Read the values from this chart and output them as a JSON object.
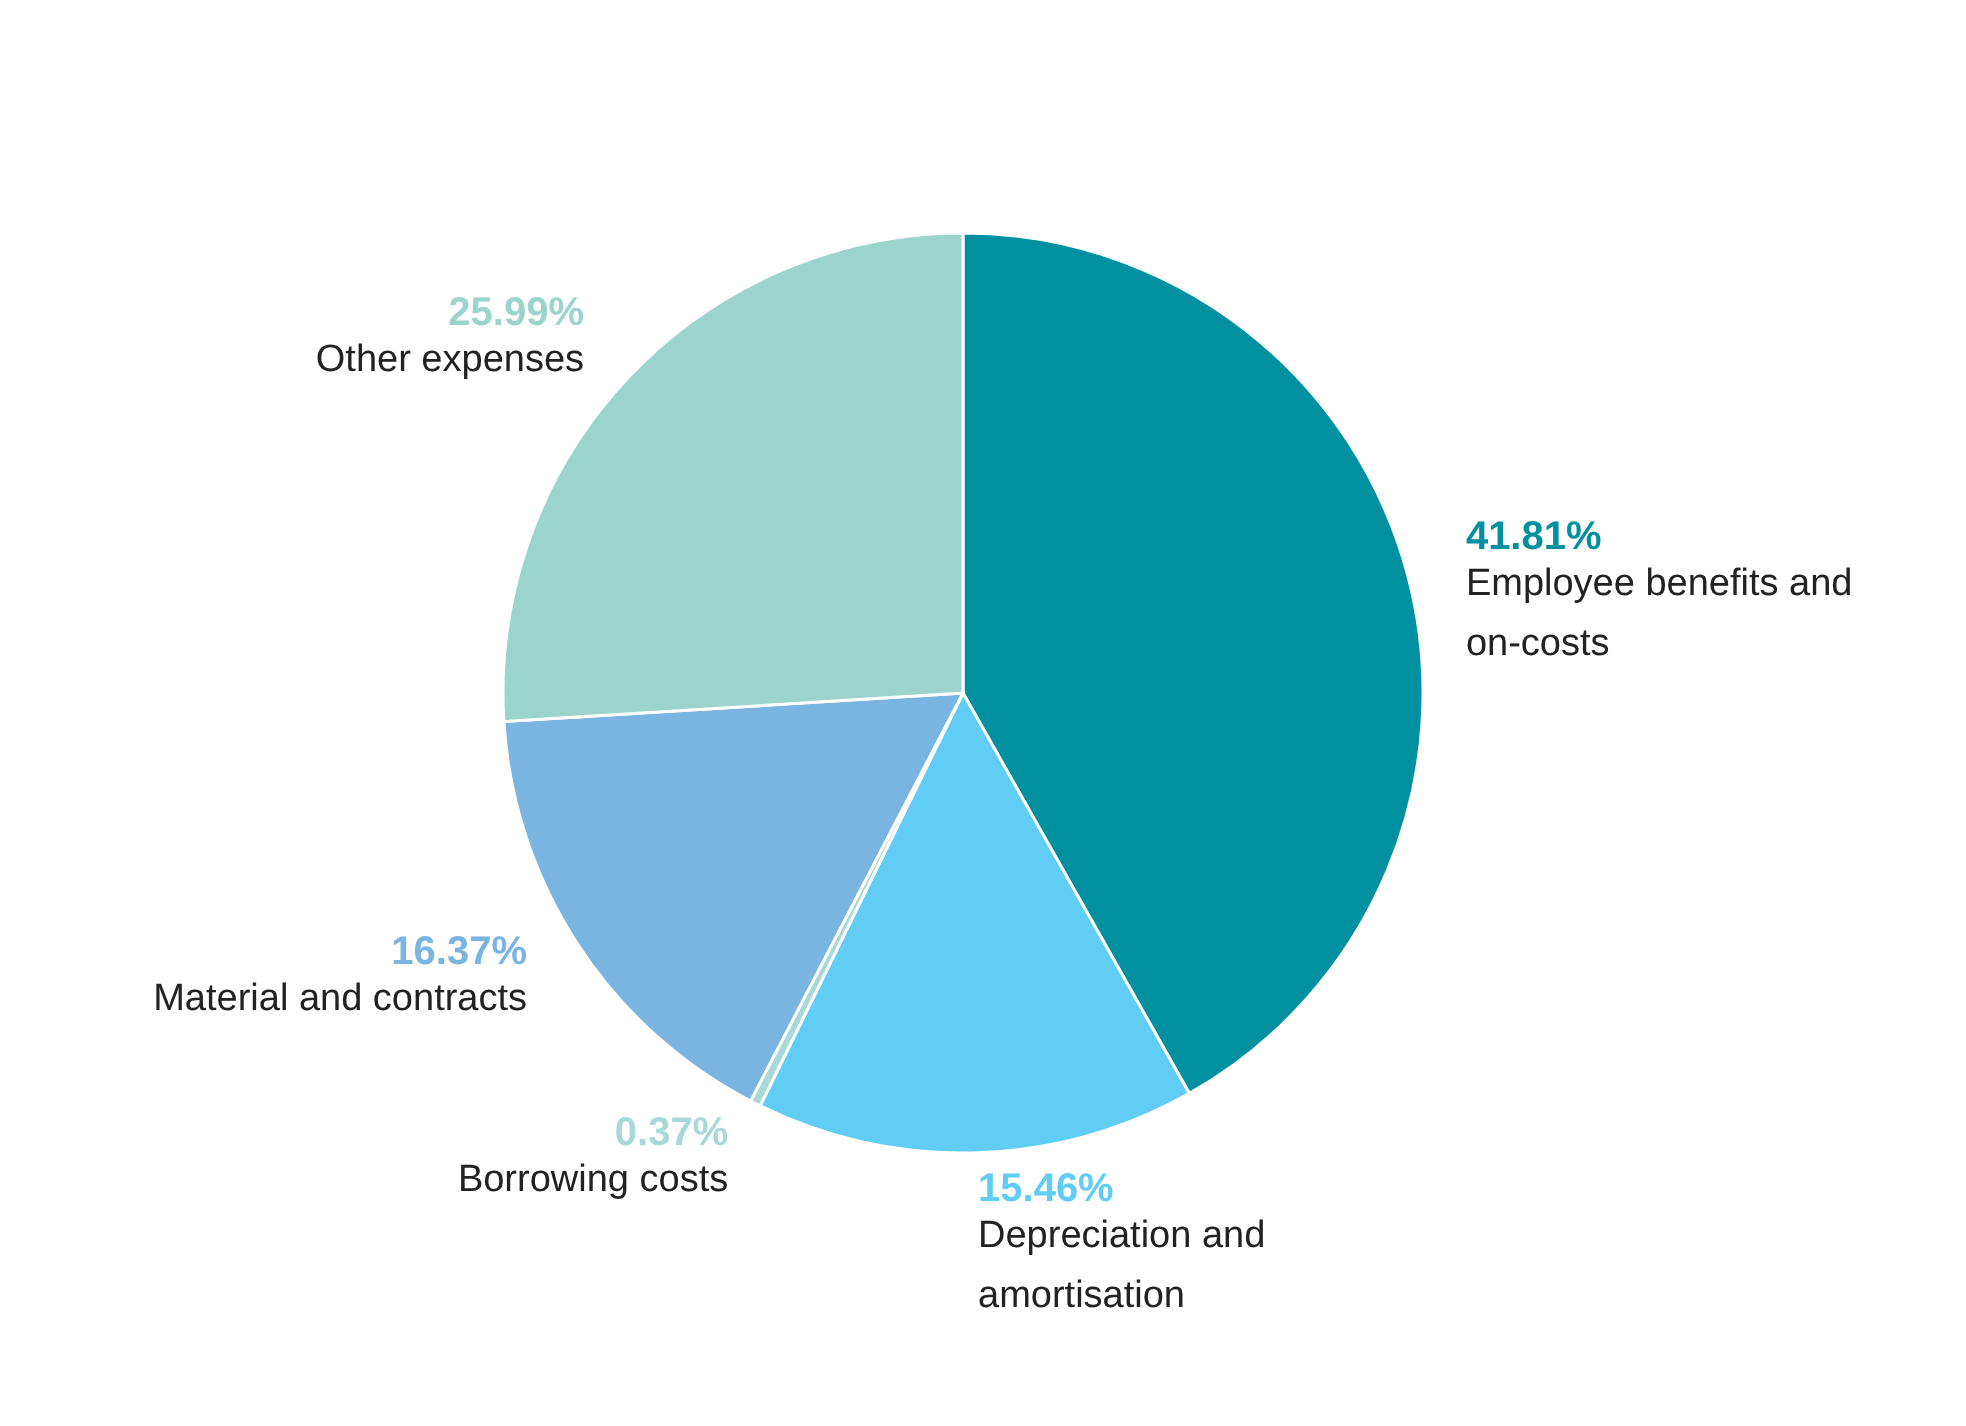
{
  "chart_data": {
    "type": "pie",
    "categories": [
      "Employee benefits and on-costs",
      "Depreciation and amortisation",
      "Borrowing costs",
      "Material and contracts",
      "Other expenses"
    ],
    "values": [
      41.81,
      15.46,
      0.37,
      16.37,
      25.99
    ],
    "value_labels": [
      "41.81%",
      "15.46%",
      "0.37%",
      "16.37%",
      "25.99%"
    ],
    "colors": [
      "#0090a0",
      "#62cdf4",
      "#a8d8d8",
      "#7ab5e2",
      "#9ad4cb"
    ],
    "legend": false
  }
}
